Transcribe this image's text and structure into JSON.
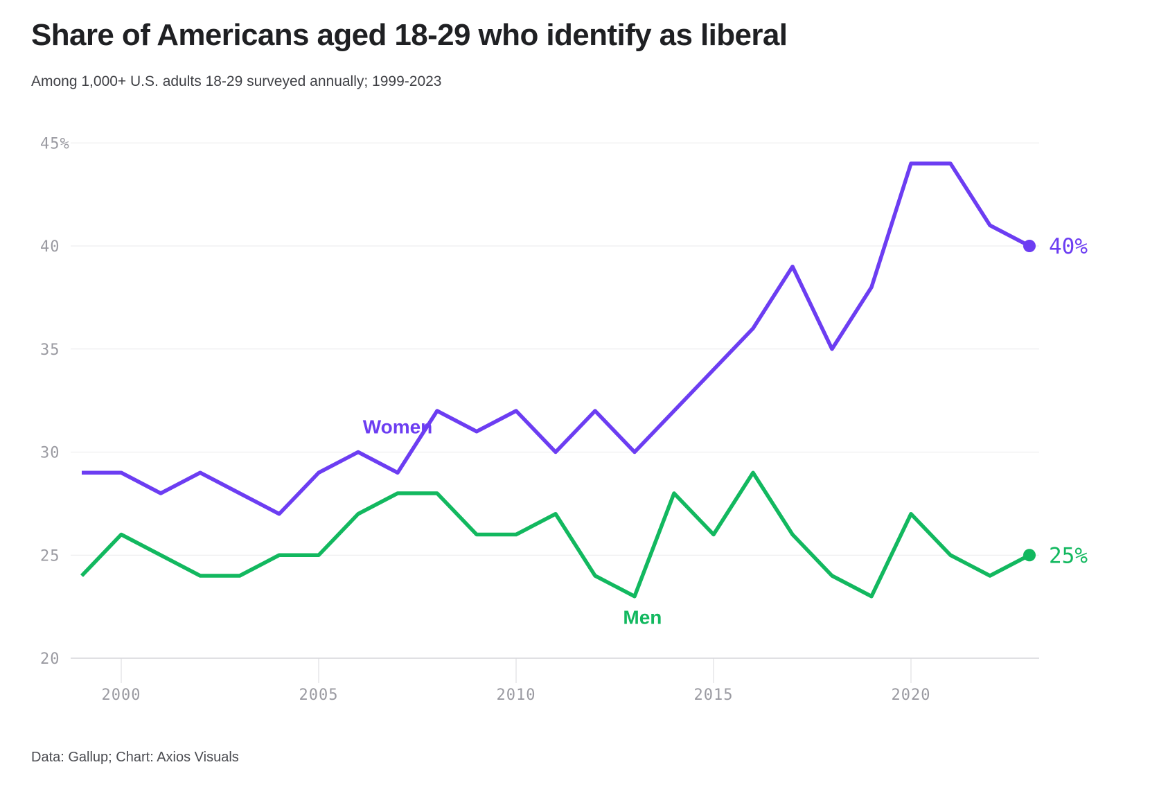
{
  "header": {
    "title": "Share of Americans aged 18-29 who identify as liberal",
    "subtitle": "Among 1,000+ U.S. adults 18-29 surveyed annually; 1999-2023"
  },
  "footer": {
    "credit": "Data: Gallup; Chart: Axios Visuals"
  },
  "chart_data": {
    "type": "line",
    "title": "Share of Americans aged 18-29 who identify as liberal",
    "x": [
      1999,
      2000,
      2001,
      2002,
      2003,
      2004,
      2005,
      2006,
      2007,
      2008,
      2009,
      2010,
      2011,
      2012,
      2013,
      2014,
      2015,
      2016,
      2017,
      2018,
      2019,
      2020,
      2021,
      2022,
      2023
    ],
    "series": [
      {
        "name": "Women",
        "color": "#6c3df2",
        "values": [
          29,
          29,
          28,
          29,
          28,
          27,
          29,
          30,
          29,
          32,
          31,
          32,
          30,
          32,
          30,
          32,
          34,
          36,
          39,
          35,
          38,
          44,
          44,
          41,
          40
        ],
        "end_label": "40%",
        "end_value": 40,
        "name_label_anchor": {
          "year": 2007.0,
          "value": 31.25
        }
      },
      {
        "name": "Men",
        "color": "#12b85f",
        "values": [
          24,
          26,
          25,
          24,
          24,
          25,
          25,
          27,
          28,
          28,
          26,
          26,
          27,
          24,
          23,
          28,
          26,
          29,
          26,
          24,
          23,
          27,
          25,
          24,
          25
        ],
        "end_label": "25%",
        "end_value": 25,
        "name_label_anchor": {
          "year": 2013.2,
          "value": 22.0
        }
      }
    ],
    "xlim": [
      1999,
      2023
    ],
    "ylim": [
      20,
      45
    ],
    "xticks": [
      2000,
      2005,
      2010,
      2015,
      2020
    ],
    "yticks": [
      {
        "value": 45,
        "label": "45%"
      },
      {
        "value": 40,
        "label": "40"
      },
      {
        "value": 35,
        "label": "35"
      },
      {
        "value": 30,
        "label": "30"
      },
      {
        "value": 25,
        "label": "25"
      },
      {
        "value": 20,
        "label": "20"
      }
    ],
    "grid": true,
    "legend_position": "inline-series-labels"
  },
  "colors": {
    "women_line": "#6c3df2",
    "men_line": "#12b85f",
    "gridline": "#e9e9eb",
    "axis_line": "#d6d6da",
    "tick_mark": "#d9d9dc",
    "tick_label": "#9a9aa1",
    "title_text": "#1f2023",
    "subtitle_text": "#3f4045",
    "credit_text": "#4a4b50"
  }
}
